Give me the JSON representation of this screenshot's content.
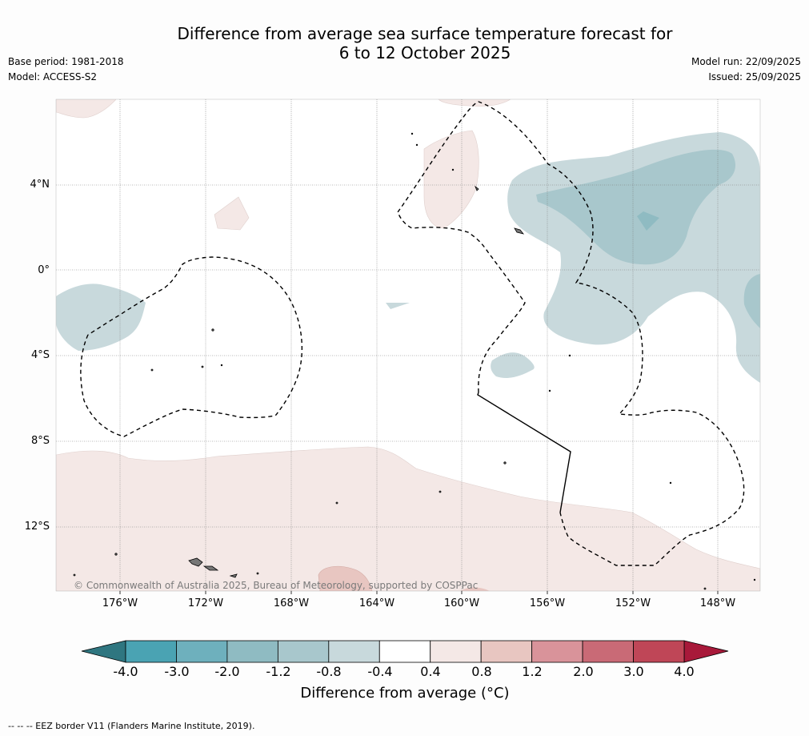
{
  "title": {
    "line1": "Difference from average sea surface temperature forecast for",
    "line2": "6 to 12 October 2025"
  },
  "meta": {
    "base_period": "Base period: 1981-2018",
    "model": "Model: ACCESS-S2",
    "model_run": "Model run: 22/09/2025",
    "issued": "Issued: 25/09/2025"
  },
  "map": {
    "lat_labels": [
      "4°N",
      "0°",
      "4°S",
      "8°S",
      "12°S"
    ],
    "lon_labels": [
      "176°W",
      "172°W",
      "168°W",
      "164°W",
      "160°W",
      "156°W",
      "152°W",
      "148°W"
    ],
    "copyright": "© Commonwealth of Australia 2025, Bureau of Meteorology, supported by COSPPac"
  },
  "colorbar": {
    "labels": [
      "-4.0",
      "-3.0",
      "-2.0",
      "-1.2",
      "-0.8",
      "-0.4",
      "0.4",
      "0.8",
      "1.2",
      "2.0",
      "3.0",
      "4.0"
    ],
    "colors": [
      "#4aa3b3",
      "#6eb0bd",
      "#8fbbc2",
      "#a8c7cc",
      "#c8d9dc",
      "#ffffff",
      "#f4e8e6",
      "#e8c6c1",
      "#d9939a",
      "#c96a76",
      "#bf4657"
    ],
    "low_extend_color": "#2f7680",
    "high_extend_color": "#a8193a",
    "title": "Difference from average (°C)"
  },
  "footer": "--  --  -- EEZ border V11 (Flanders Marine Institute, 2019)."
}
